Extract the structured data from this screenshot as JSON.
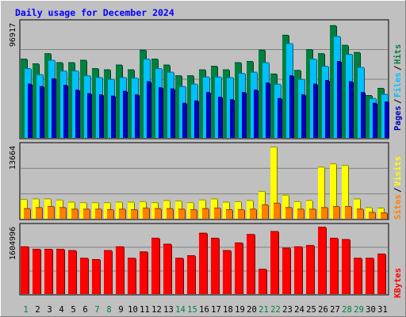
{
  "chart_data": {
    "type": "bar",
    "title": "Daily usage for December 2024",
    "categories": [
      "1",
      "2",
      "3",
      "4",
      "5",
      "6",
      "7",
      "8",
      "9",
      "10",
      "11",
      "12",
      "13",
      "14",
      "15",
      "16",
      "17",
      "18",
      "19",
      "20",
      "21",
      "22",
      "23",
      "24",
      "25",
      "26",
      "27",
      "28",
      "29",
      "30",
      "31"
    ],
    "weekend_days": [
      "1",
      "7",
      "8",
      "14",
      "15",
      "21",
      "22",
      "28",
      "29"
    ],
    "top_panel": {
      "max_label": "96917",
      "ymax": 96917,
      "series": [
        {
          "name": "Hits",
          "color": "#008040",
          "values": [
            67000,
            63000,
            71500,
            64000,
            64000,
            66000,
            59000,
            58000,
            62000,
            58000,
            74500,
            67000,
            62000,
            53000,
            53000,
            58000,
            61000,
            58000,
            64000,
            65000,
            74500,
            54500,
            87000,
            57500,
            75000,
            71500,
            95000,
            78500,
            72500,
            36500,
            42500
          ]
        },
        {
          "name": "Files",
          "color": "#00c0ff",
          "values": [
            59000,
            54000,
            66000,
            57000,
            57000,
            53000,
            51500,
            50000,
            51500,
            51000,
            67000,
            59000,
            56000,
            44000,
            46000,
            52000,
            52000,
            51500,
            55000,
            56000,
            64000,
            46000,
            80000,
            50000,
            67000,
            61000,
            86000,
            71000,
            60000,
            34000,
            37500
          ]
        },
        {
          "name": "Pages",
          "color": "#0000c0",
          "values": [
            46000,
            44000,
            50500,
            45000,
            41000,
            38000,
            37000,
            36000,
            40000,
            37000,
            48000,
            43000,
            42000,
            30000,
            32000,
            39000,
            35000,
            33000,
            39000,
            41000,
            47000,
            34000,
            53000,
            37000,
            46000,
            49000,
            65000,
            48000,
            39000,
            30000,
            31000
          ]
        }
      ],
      "side_labels": [
        "Pages",
        "Files",
        "Hits"
      ]
    },
    "middle_panel": {
      "max_label": "13664",
      "ymax": 13664,
      "series": [
        {
          "name": "Visits",
          "color": "#ffff00",
          "values": [
            3800,
            3900,
            3900,
            3700,
            3300,
            3200,
            3200,
            3200,
            3300,
            3300,
            3400,
            3200,
            3600,
            3500,
            3200,
            3700,
            3900,
            3300,
            3400,
            3600,
            5300,
            13500,
            4600,
            3400,
            3600,
            9800,
            10400,
            10100,
            3900,
            2300,
            2200
          ]
        },
        {
          "name": "Sites",
          "color": "#ff8000",
          "values": [
            2100,
            2300,
            2500,
            2300,
            2000,
            2000,
            2000,
            1900,
            2000,
            1900,
            2200,
            2100,
            2100,
            2000,
            1900,
            2100,
            2200,
            1900,
            1900,
            2000,
            2800,
            3100,
            2300,
            2000,
            2000,
            2300,
            2500,
            2500,
            2000,
            1400,
            1300
          ]
        }
      ],
      "side_labels": [
        "Sites",
        "Visits"
      ]
    },
    "bottom_panel": {
      "max_label": "1604996",
      "ymax": 1604996,
      "series": [
        {
          "name": "KBytes",
          "color": "#ff0000",
          "values": [
            1140000,
            1080000,
            1080000,
            1080000,
            1050000,
            870000,
            840000,
            1050000,
            1140000,
            870000,
            1020000,
            1340000,
            1200000,
            870000,
            930000,
            1460000,
            1340000,
            1050000,
            1230000,
            1430000,
            610000,
            1500000,
            1110000,
            1140000,
            1170000,
            1600000,
            1340000,
            1310000,
            870000,
            870000,
            970000
          ]
        }
      ],
      "side_labels": [
        "KBytes"
      ]
    },
    "grid": true,
    "legend": "right-side-vertical"
  }
}
